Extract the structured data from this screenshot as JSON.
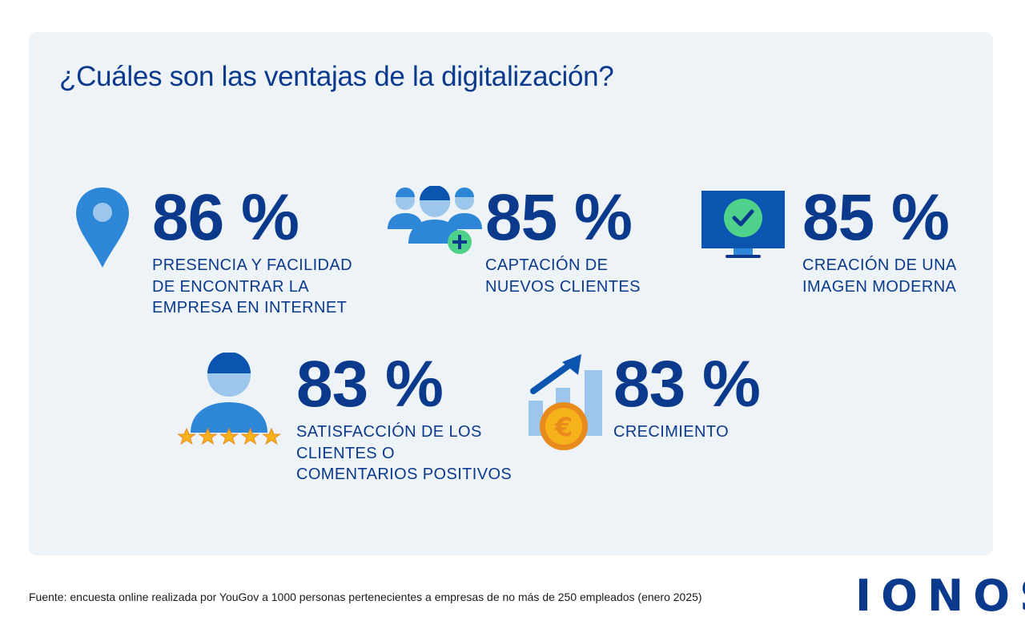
{
  "title": "¿Cuáles son las ventajas de la digitalización?",
  "colors": {
    "navy": "#0b3a8c",
    "blue": "#2d86d6",
    "light_blue": "#9cc6ec",
    "green": "#4fd18b",
    "gold": "#f6b21a",
    "orange": "#e98a1c",
    "panel": "#eef3f7"
  },
  "stats": [
    {
      "percent": "86 %",
      "label": "Presencia y facilidad\nde encontrar la\nempresa en internet",
      "icon": "location-pin-icon"
    },
    {
      "percent": "85 %",
      "label": "Captación de\nnuevos clientes",
      "icon": "add-users-icon"
    },
    {
      "percent": "85 %",
      "label": "Creación de una\nimagen moderna",
      "icon": "monitor-check-icon"
    },
    {
      "percent": "83 %",
      "label": "Satisfacción de los\nclientes o\ncomentarios positivos",
      "icon": "user-five-stars-icon"
    },
    {
      "percent": "83 %",
      "label": "Crecimiento",
      "icon": "growth-chart-euro-icon"
    }
  ],
  "footer": {
    "source": "Fuente: encuesta online realizada por YouGov a 1000 personas pertenecientes a empresas de no más de 250 empleados (enero 2025)"
  },
  "logo": {
    "text": "IONOS"
  }
}
